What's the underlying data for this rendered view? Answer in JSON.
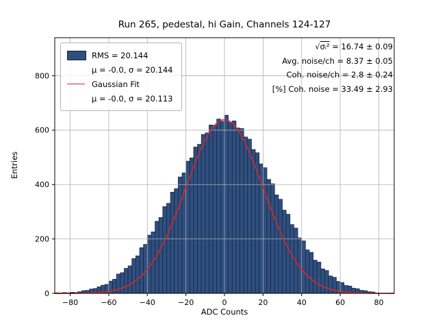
{
  "chart_data": {
    "type": "bar",
    "title": "Run 265, pedestal, hi Gain, Channels 124-127",
    "xlabel": "ADC Counts",
    "ylabel": "Entries",
    "xlim": [
      -88,
      88
    ],
    "ylim": [
      0,
      940
    ],
    "xticks": [
      -80,
      -60,
      -40,
      -20,
      0,
      20,
      40,
      60,
      80
    ],
    "yticks": [
      0,
      200,
      400,
      600,
      800
    ],
    "grid": true,
    "grid_color": "#b0b0b0",
    "bar_color": "#2f4f7f",
    "bar_edge_color": "#13233a",
    "x_start": -88,
    "bin_width": 2,
    "counts": [
      2,
      1,
      3,
      2,
      4,
      3,
      6,
      10,
      11,
      16,
      18,
      24,
      30,
      33,
      45,
      52,
      71,
      76,
      92,
      101,
      128,
      138,
      168,
      180,
      214,
      226,
      265,
      279,
      319,
      331,
      372,
      385,
      428,
      443,
      486,
      498,
      538,
      548,
      584,
      590,
      619,
      617,
      641,
      632,
      655,
      628,
      634,
      608,
      606,
      575,
      567,
      529,
      517,
      476,
      462,
      419,
      403,
      362,
      346,
      306,
      291,
      253,
      240,
      204,
      193,
      160,
      151,
      122,
      115,
      90,
      84,
      64,
      59,
      44,
      40,
      29,
      27,
      19,
      17,
      11,
      10,
      6,
      5
    ],
    "fit": {
      "type": "gaussian",
      "amplitude": 638,
      "mu": -0.0,
      "sigma": 20.113,
      "color": "#d62728"
    },
    "legend": {
      "position": "upper-left",
      "entries": [
        {
          "symbol": "patch",
          "color": "#2f4f7f",
          "line1": "RMS = 20.144",
          "line2": "μ = -0.0, σ = 20.144"
        },
        {
          "symbol": "line",
          "color": "#d62728",
          "line1": "Gaussian Fit",
          "line2": "μ = -0.0, σ = 20.113"
        }
      ]
    },
    "annotations": {
      "rms_sqrt_prefix": "√",
      "rms_sqrt_arg": "σᵢ²",
      "rms_value": " = 16.74 ± 0.09",
      "avg_noise": "Avg. noise/ch = 8.37 ± 0.05",
      "coh_noise": "Coh. noise/ch = 2.8 ± 0.24",
      "coh_noise_pct": "[%] Coh. noise = 33.49 ± 2.93"
    }
  }
}
